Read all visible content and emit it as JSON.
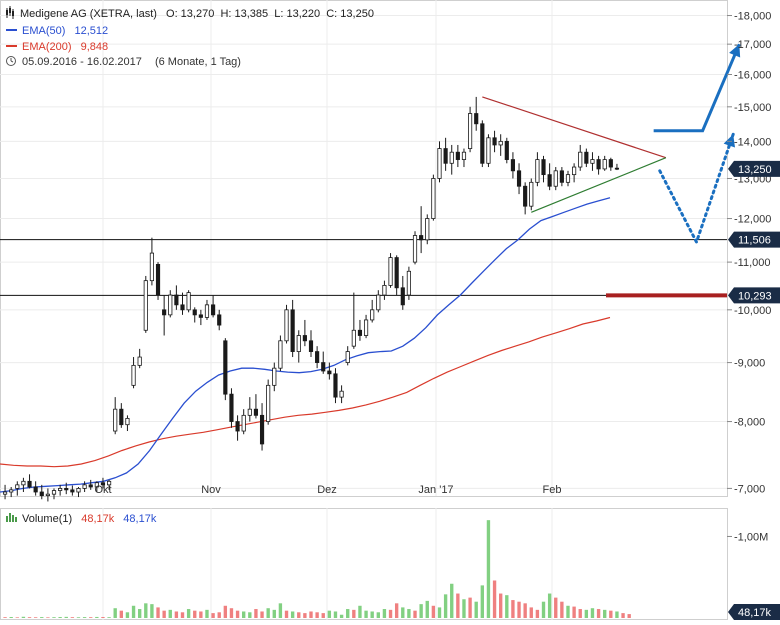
{
  "legend": {
    "title": "Medigene AG (XETRA, last)",
    "ohlc": "O: 13,270  H: 13,385  L: 13,220  C: 13,250",
    "ema50_label": "EMA(50)",
    "ema50_value": "12,512",
    "ema200_label": "EMA(200)",
    "ema200_value": "9,848",
    "period": "05.09.2016 - 16.02.2017",
    "period_note": "(6 Monate, 1 Tag)"
  },
  "volume_legend": {
    "label": "Volume(1)",
    "value_red": "48,17k",
    "value_blue": "48,17k"
  },
  "colors": {
    "up": "#1a1a1a",
    "down": "#1a1a1a",
    "ema50": "#2a4fd0",
    "ema200": "#d93a2b",
    "triangle_upper": "#b03030",
    "triangle_lower": "#2f7d32",
    "scenario": "#1a6fc0",
    "resistance_bar": "#a82020",
    "vol_up": "#82d082",
    "vol_down": "#ef8080",
    "price_tag": "#1a2c46"
  },
  "chart_data": [
    {
      "type": "candlestick",
      "title": "Medigene AG (XETRA, last)",
      "x_ticks": [
        "Okt",
        "Nov",
        "Dez",
        "Jan '17",
        "Feb"
      ],
      "y_ticks": [
        "7,000",
        "8,000",
        "9,000",
        "10,000",
        "11,000",
        "12,000",
        "13,000",
        "14,000",
        "15,000",
        "16,000",
        "17,000",
        "18,000"
      ],
      "y_tick_values": [
        7,
        8,
        9,
        10,
        11,
        12,
        13,
        14,
        15,
        16,
        17,
        18
      ],
      "ylim": [
        6.95,
        18.2
      ],
      "scale": "log",
      "candles": [
        {
          "o": 6.92,
          "h": 7.05,
          "l": 6.85,
          "c": 6.95
        },
        {
          "o": 6.95,
          "h": 7.02,
          "l": 6.88,
          "c": 6.98
        },
        {
          "o": 7.0,
          "h": 7.1,
          "l": 6.9,
          "c": 7.05
        },
        {
          "o": 7.05,
          "h": 7.15,
          "l": 6.95,
          "c": 7.1
        },
        {
          "o": 7.1,
          "h": 7.2,
          "l": 7.0,
          "c": 7.02
        },
        {
          "o": 7.02,
          "h": 7.1,
          "l": 6.9,
          "c": 6.95
        },
        {
          "o": 6.95,
          "h": 7.05,
          "l": 6.85,
          "c": 6.9
        },
        {
          "o": 6.9,
          "h": 7.0,
          "l": 6.82,
          "c": 6.92
        },
        {
          "o": 6.92,
          "h": 7.0,
          "l": 6.85,
          "c": 6.97
        },
        {
          "o": 6.97,
          "h": 7.05,
          "l": 6.9,
          "c": 7.0
        },
        {
          "o": 7.0,
          "h": 7.08,
          "l": 6.92,
          "c": 6.98
        },
        {
          "o": 6.98,
          "h": 7.04,
          "l": 6.9,
          "c": 6.95
        },
        {
          "o": 6.95,
          "h": 7.02,
          "l": 6.88,
          "c": 7.0
        },
        {
          "o": 7.0,
          "h": 7.1,
          "l": 6.95,
          "c": 7.05
        },
        {
          "o": 7.05,
          "h": 7.12,
          "l": 6.98,
          "c": 7.02
        },
        {
          "o": 7.02,
          "h": 7.1,
          "l": 6.95,
          "c": 7.08
        },
        {
          "o": 7.08,
          "h": 7.15,
          "l": 7.0,
          "c": 7.05
        },
        {
          "o": 7.05,
          "h": 7.12,
          "l": 6.98,
          "c": 7.1
        },
        {
          "o": 7.85,
          "h": 8.4,
          "l": 7.8,
          "c": 8.2
        },
        {
          "o": 8.2,
          "h": 8.3,
          "l": 7.9,
          "c": 7.95
        },
        {
          "o": 7.95,
          "h": 8.1,
          "l": 7.85,
          "c": 8.05
        },
        {
          "o": 8.6,
          "h": 9.1,
          "l": 8.55,
          "c": 8.95
        },
        {
          "o": 8.95,
          "h": 9.25,
          "l": 8.9,
          "c": 9.1
        },
        {
          "o": 9.6,
          "h": 10.7,
          "l": 9.55,
          "c": 10.6
        },
        {
          "o": 10.6,
          "h": 11.55,
          "l": 10.5,
          "c": 11.2
        },
        {
          "o": 10.95,
          "h": 11.0,
          "l": 10.2,
          "c": 10.3
        },
        {
          "o": 10.0,
          "h": 10.3,
          "l": 9.5,
          "c": 9.9
        },
        {
          "o": 9.9,
          "h": 10.4,
          "l": 9.85,
          "c": 10.3
        },
        {
          "o": 10.3,
          "h": 10.5,
          "l": 10.0,
          "c": 10.1
        },
        {
          "o": 10.1,
          "h": 10.35,
          "l": 9.9,
          "c": 10.0
        },
        {
          "o": 10.0,
          "h": 10.4,
          "l": 9.95,
          "c": 10.35
        },
        {
          "o": 10.0,
          "h": 10.05,
          "l": 9.75,
          "c": 9.9
        },
        {
          "o": 9.9,
          "h": 10.0,
          "l": 9.7,
          "c": 9.85
        },
        {
          "o": 9.85,
          "h": 10.2,
          "l": 9.8,
          "c": 10.1
        },
        {
          "o": 10.1,
          "h": 10.3,
          "l": 9.85,
          "c": 9.9
        },
        {
          "o": 9.9,
          "h": 10.0,
          "l": 9.6,
          "c": 9.7
        },
        {
          "o": 9.4,
          "h": 9.45,
          "l": 8.35,
          "c": 8.45
        },
        {
          "o": 8.45,
          "h": 8.55,
          "l": 7.9,
          "c": 8.0
        },
        {
          "o": 8.0,
          "h": 8.1,
          "l": 7.7,
          "c": 7.85
        },
        {
          "o": 7.85,
          "h": 8.2,
          "l": 7.8,
          "c": 8.1
        },
        {
          "o": 8.1,
          "h": 8.4,
          "l": 8.0,
          "c": 8.2
        },
        {
          "o": 8.2,
          "h": 8.45,
          "l": 8.05,
          "c": 8.1
        },
        {
          "o": 8.1,
          "h": 8.3,
          "l": 7.55,
          "c": 7.65
        },
        {
          "o": 8.0,
          "h": 8.7,
          "l": 7.95,
          "c": 8.6
        },
        {
          "o": 8.6,
          "h": 9.0,
          "l": 8.5,
          "c": 8.9
        },
        {
          "o": 8.9,
          "h": 9.5,
          "l": 8.85,
          "c": 9.4
        },
        {
          "o": 9.4,
          "h": 10.1,
          "l": 9.35,
          "c": 10.0
        },
        {
          "o": 10.0,
          "h": 10.2,
          "l": 9.1,
          "c": 9.2
        },
        {
          "o": 9.2,
          "h": 9.6,
          "l": 9.0,
          "c": 9.5
        },
        {
          "o": 9.5,
          "h": 9.8,
          "l": 9.3,
          "c": 9.4
        },
        {
          "o": 9.4,
          "h": 9.6,
          "l": 9.1,
          "c": 9.2
        },
        {
          "o": 9.2,
          "h": 9.3,
          "l": 8.9,
          "c": 9.0
        },
        {
          "o": 9.0,
          "h": 9.2,
          "l": 8.8,
          "c": 8.85
        },
        {
          "o": 8.85,
          "h": 9.0,
          "l": 8.7,
          "c": 8.8
        },
        {
          "o": 8.8,
          "h": 8.9,
          "l": 8.3,
          "c": 8.4
        },
        {
          "o": 8.4,
          "h": 8.6,
          "l": 8.3,
          "c": 8.5
        },
        {
          "o": 9.0,
          "h": 9.3,
          "l": 8.95,
          "c": 9.2
        },
        {
          "o": 9.3,
          "h": 10.35,
          "l": 9.25,
          "c": 9.6
        },
        {
          "o": 9.6,
          "h": 9.8,
          "l": 9.4,
          "c": 9.5
        },
        {
          "o": 9.5,
          "h": 9.9,
          "l": 9.45,
          "c": 9.8
        },
        {
          "o": 9.8,
          "h": 10.2,
          "l": 9.75,
          "c": 10.0
        },
        {
          "o": 10.0,
          "h": 10.4,
          "l": 9.95,
          "c": 10.3
        },
        {
          "o": 10.3,
          "h": 10.6,
          "l": 10.2,
          "c": 10.5
        },
        {
          "o": 10.5,
          "h": 11.2,
          "l": 10.45,
          "c": 11.1
        },
        {
          "o": 11.1,
          "h": 11.15,
          "l": 10.3,
          "c": 10.45
        },
        {
          "o": 10.45,
          "h": 10.7,
          "l": 10.0,
          "c": 10.1
        },
        {
          "o": 10.3,
          "h": 10.9,
          "l": 10.2,
          "c": 10.8
        },
        {
          "o": 11.0,
          "h": 11.7,
          "l": 10.95,
          "c": 11.6
        },
        {
          "o": 11.6,
          "h": 12.3,
          "l": 11.2,
          "c": 11.5
        },
        {
          "o": 11.5,
          "h": 12.1,
          "l": 11.4,
          "c": 12.0
        },
        {
          "o": 12.0,
          "h": 13.1,
          "l": 11.95,
          "c": 13.0
        },
        {
          "o": 13.0,
          "h": 14.0,
          "l": 12.9,
          "c": 13.8
        },
        {
          "o": 13.8,
          "h": 14.1,
          "l": 13.2,
          "c": 13.4
        },
        {
          "o": 13.4,
          "h": 13.9,
          "l": 13.1,
          "c": 13.7
        },
        {
          "o": 13.7,
          "h": 13.9,
          "l": 13.3,
          "c": 13.5
        },
        {
          "o": 13.5,
          "h": 13.8,
          "l": 13.3,
          "c": 13.7
        },
        {
          "o": 13.8,
          "h": 15.0,
          "l": 13.7,
          "c": 14.8
        },
        {
          "o": 14.8,
          "h": 15.3,
          "l": 14.3,
          "c": 14.5
        },
        {
          "o": 14.5,
          "h": 14.6,
          "l": 13.3,
          "c": 13.4
        },
        {
          "o": 13.4,
          "h": 14.2,
          "l": 13.3,
          "c": 14.1
        },
        {
          "o": 14.1,
          "h": 14.3,
          "l": 13.7,
          "c": 13.9
        },
        {
          "o": 13.9,
          "h": 14.2,
          "l": 13.6,
          "c": 14.0
        },
        {
          "o": 14.0,
          "h": 14.1,
          "l": 13.4,
          "c": 13.5
        },
        {
          "o": 13.5,
          "h": 13.7,
          "l": 13.0,
          "c": 13.2
        },
        {
          "o": 13.2,
          "h": 13.4,
          "l": 12.6,
          "c": 12.8
        },
        {
          "o": 12.8,
          "h": 12.9,
          "l": 12.1,
          "c": 12.3
        },
        {
          "o": 12.3,
          "h": 13.0,
          "l": 12.2,
          "c": 12.9
        },
        {
          "o": 12.9,
          "h": 13.7,
          "l": 12.8,
          "c": 13.5
        },
        {
          "o": 13.5,
          "h": 13.6,
          "l": 12.9,
          "c": 13.1
        },
        {
          "o": 13.1,
          "h": 13.4,
          "l": 12.7,
          "c": 12.8
        },
        {
          "o": 12.8,
          "h": 13.3,
          "l": 12.7,
          "c": 13.2
        },
        {
          "o": 13.2,
          "h": 13.3,
          "l": 12.8,
          "c": 12.9
        },
        {
          "o": 12.9,
          "h": 13.2,
          "l": 12.8,
          "c": 13.1
        },
        {
          "o": 13.1,
          "h": 13.4,
          "l": 12.9,
          "c": 13.3
        },
        {
          "o": 13.3,
          "h": 13.9,
          "l": 13.2,
          "c": 13.7
        },
        {
          "o": 13.7,
          "h": 13.8,
          "l": 13.3,
          "c": 13.4
        },
        {
          "o": 13.4,
          "h": 13.7,
          "l": 13.2,
          "c": 13.5
        },
        {
          "o": 13.5,
          "h": 13.6,
          "l": 13.1,
          "c": 13.25
        },
        {
          "o": 13.25,
          "h": 13.6,
          "l": 13.2,
          "c": 13.5
        },
        {
          "o": 13.5,
          "h": 13.55,
          "l": 13.2,
          "c": 13.3
        },
        {
          "o": 13.27,
          "h": 13.385,
          "l": 13.22,
          "c": 13.25
        }
      ],
      "ema50": [
        6.95,
        6.97,
        7.0,
        7.02,
        7.03,
        7.04,
        7.05,
        7.06,
        7.08,
        7.1,
        7.15,
        7.22,
        7.35,
        7.55,
        7.8,
        8.05,
        8.3,
        8.5,
        8.65,
        8.78,
        8.85,
        8.9,
        8.9,
        8.88,
        8.85,
        8.83,
        8.82,
        8.84,
        8.88,
        8.95,
        9.05,
        9.12,
        9.18,
        9.2,
        9.21,
        9.3,
        9.45,
        9.65,
        9.9,
        10.1,
        10.3,
        10.55,
        10.8,
        11.05,
        11.3,
        11.5,
        11.75,
        11.95,
        12.05,
        12.15,
        12.25,
        12.35,
        12.43,
        12.51
      ],
      "ema200": [
        7.35,
        7.33,
        7.32,
        7.32,
        7.31,
        7.32,
        7.35,
        7.4,
        7.47,
        7.55,
        7.62,
        7.68,
        7.73,
        7.77,
        7.8,
        7.83,
        7.87,
        7.91,
        7.95,
        7.99,
        8.03,
        8.07,
        8.1,
        8.12,
        8.15,
        8.18,
        8.22,
        8.27,
        8.33,
        8.4,
        8.48,
        8.6,
        8.72,
        8.83,
        8.93,
        9.03,
        9.13,
        9.22,
        9.3,
        9.38,
        9.47,
        9.55,
        9.63,
        9.72,
        9.78,
        9.848
      ],
      "horizontal_levels": [
        11.506,
        10.293
      ],
      "level_labels": [
        "11,506",
        "10,293"
      ],
      "last_price": 13.25,
      "last_price_label": "13,250",
      "triangle_upper": [
        [
          78,
          15.3
        ],
        [
          108,
          13.55
        ]
      ],
      "triangle_lower": [
        [
          86,
          12.15
        ],
        [
          108,
          13.55
        ]
      ],
      "scenario_up": [
        [
          106,
          14.3
        ],
        [
          114,
          14.3
        ],
        [
          120,
          17.0
        ]
      ],
      "scenario_down": [
        [
          107,
          13.2
        ],
        [
          113,
          11.45
        ],
        [
          119,
          14.2
        ]
      ]
    },
    {
      "type": "bar",
      "title": "Volume(1)",
      "y_ticks": [
        "1,00M"
      ],
      "y_tick_values": [
        1000
      ],
      "ylim": [
        0,
        1300
      ],
      "last_value_label": "48,17k",
      "volumes": [
        10,
        12,
        8,
        15,
        10,
        9,
        11,
        8,
        10,
        12,
        14,
        10,
        9,
        11,
        10,
        13,
        12,
        10,
        120,
        90,
        70,
        150,
        110,
        180,
        170,
        130,
        90,
        100,
        80,
        70,
        110,
        90,
        80,
        100,
        60,
        70,
        150,
        120,
        90,
        80,
        70,
        110,
        80,
        120,
        100,
        180,
        90,
        80,
        70,
        60,
        80,
        70,
        60,
        90,
        80,
        40,
        110,
        100,
        150,
        90,
        80,
        70,
        110,
        100,
        180,
        130,
        110,
        90,
        170,
        210,
        150,
        130,
        290,
        420,
        300,
        230,
        250,
        200,
        400,
        1200,
        460,
        300,
        280,
        220,
        200,
        180,
        130,
        100,
        200,
        300,
        250,
        200,
        150,
        140,
        110,
        100,
        120,
        110,
        100,
        90,
        80,
        60,
        48
      ],
      "volume_up": [
        false,
        true,
        false,
        true,
        false,
        false,
        true,
        false,
        true,
        true,
        true,
        false,
        true,
        true,
        false,
        true,
        false,
        true,
        true,
        false,
        true,
        true,
        true,
        true,
        true,
        false,
        false,
        true,
        false,
        false,
        true,
        false,
        false,
        true,
        false,
        false,
        false,
        false,
        false,
        true,
        true,
        false,
        false,
        true,
        true,
        true,
        false,
        true,
        false,
        false,
        false,
        false,
        false,
        true,
        true,
        true,
        true,
        false,
        true,
        true,
        true,
        true,
        true,
        false,
        false,
        true,
        true,
        false,
        true,
        true,
        false,
        true,
        true,
        true,
        false,
        true,
        false,
        true,
        true,
        true,
        false,
        false,
        true,
        false,
        false,
        false,
        false,
        false,
        true,
        true,
        false,
        false,
        true,
        false,
        false,
        true,
        true,
        false,
        true,
        false,
        true,
        false,
        false
      ]
    }
  ]
}
